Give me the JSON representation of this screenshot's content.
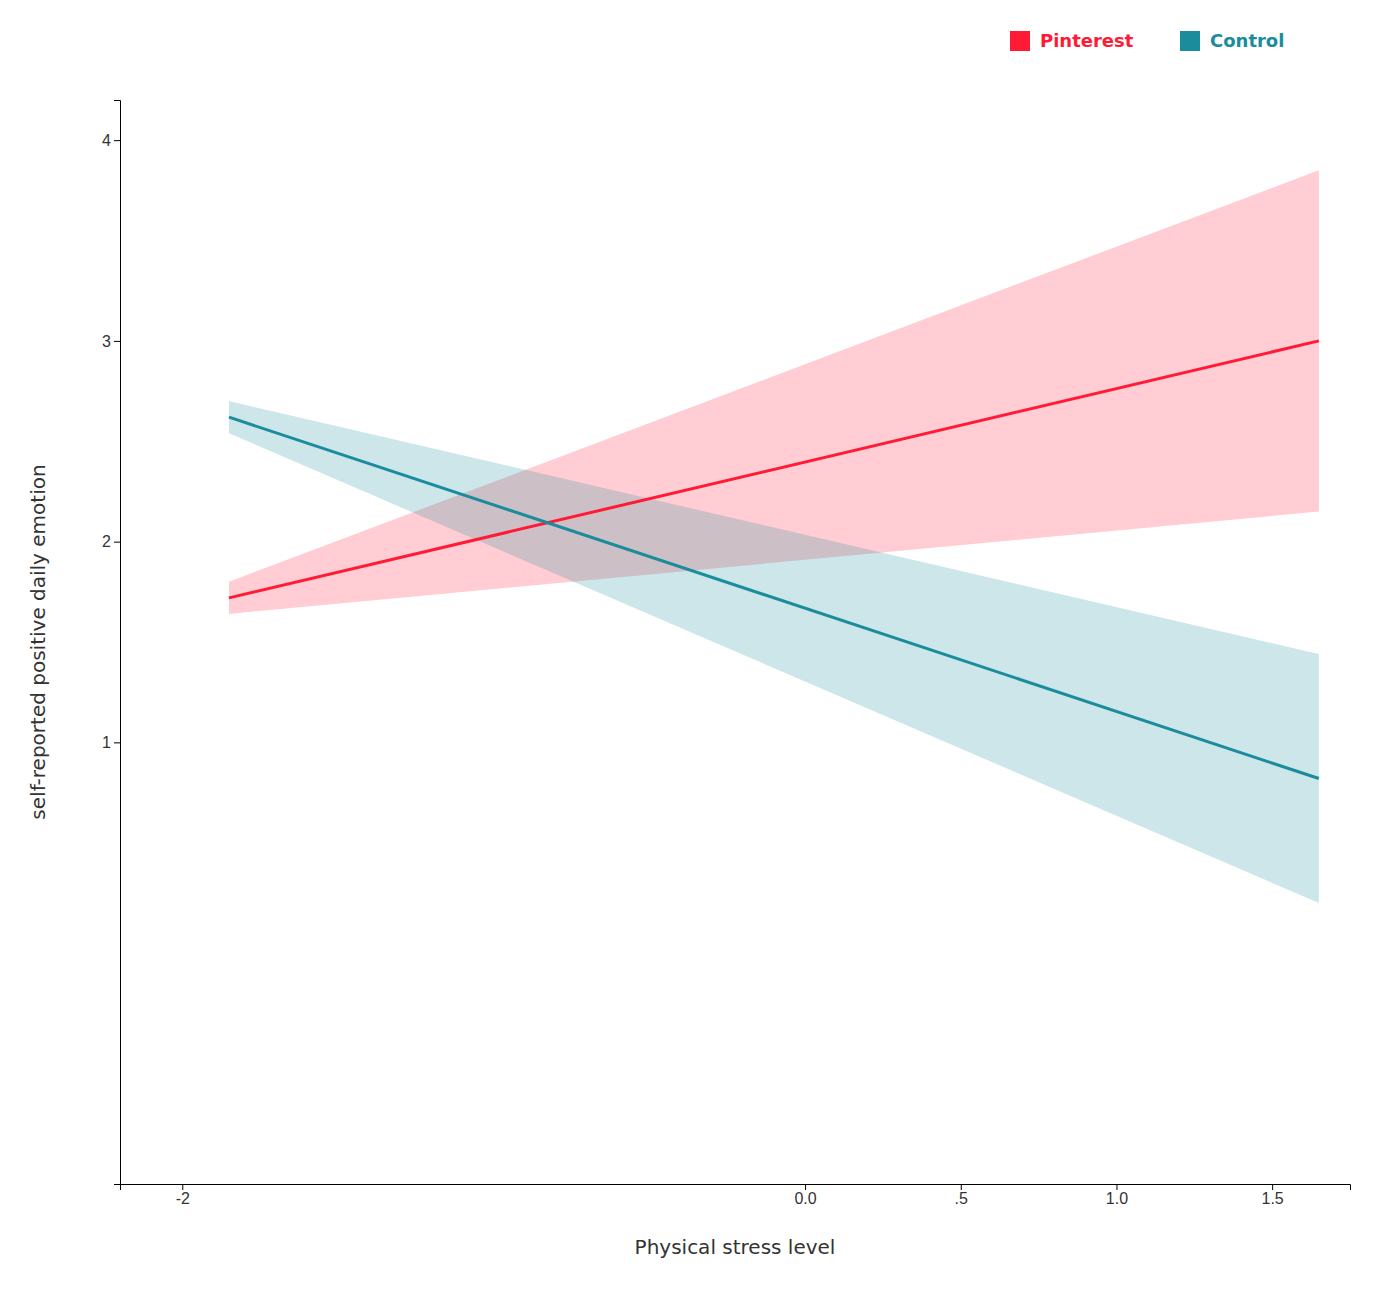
{
  "chart_data": {
    "type": "line",
    "xlabel": "Physical stress level",
    "ylabel": "self-reported positive daily emotion",
    "x": [
      -1.85,
      1.65
    ],
    "series": [
      {
        "name": "Pinterest",
        "color": "#ff1a36",
        "values": [
          1.72,
          3.0
        ],
        "lower": [
          1.64,
          2.15
        ],
        "upper": [
          1.8,
          3.85
        ]
      },
      {
        "name": "Control",
        "color": "#1a8c9c",
        "values": [
          2.62,
          0.82
        ],
        "lower": [
          2.54,
          0.2
        ],
        "upper": [
          2.7,
          1.44
        ]
      }
    ],
    "xlim": [
      -2.2,
      1.75
    ],
    "xticks": [
      -2,
      {
        "value": 0,
        "label": "0.0"
      },
      {
        "value": 0.5,
        "label": ".5"
      },
      {
        "value": 1,
        "label": "1.0"
      },
      1.5
    ],
    "ylim": [
      -1.2,
      4.2
    ],
    "yticks": [
      4,
      3,
      2,
      1
    ],
    "grid": false,
    "legend": "upper right"
  }
}
